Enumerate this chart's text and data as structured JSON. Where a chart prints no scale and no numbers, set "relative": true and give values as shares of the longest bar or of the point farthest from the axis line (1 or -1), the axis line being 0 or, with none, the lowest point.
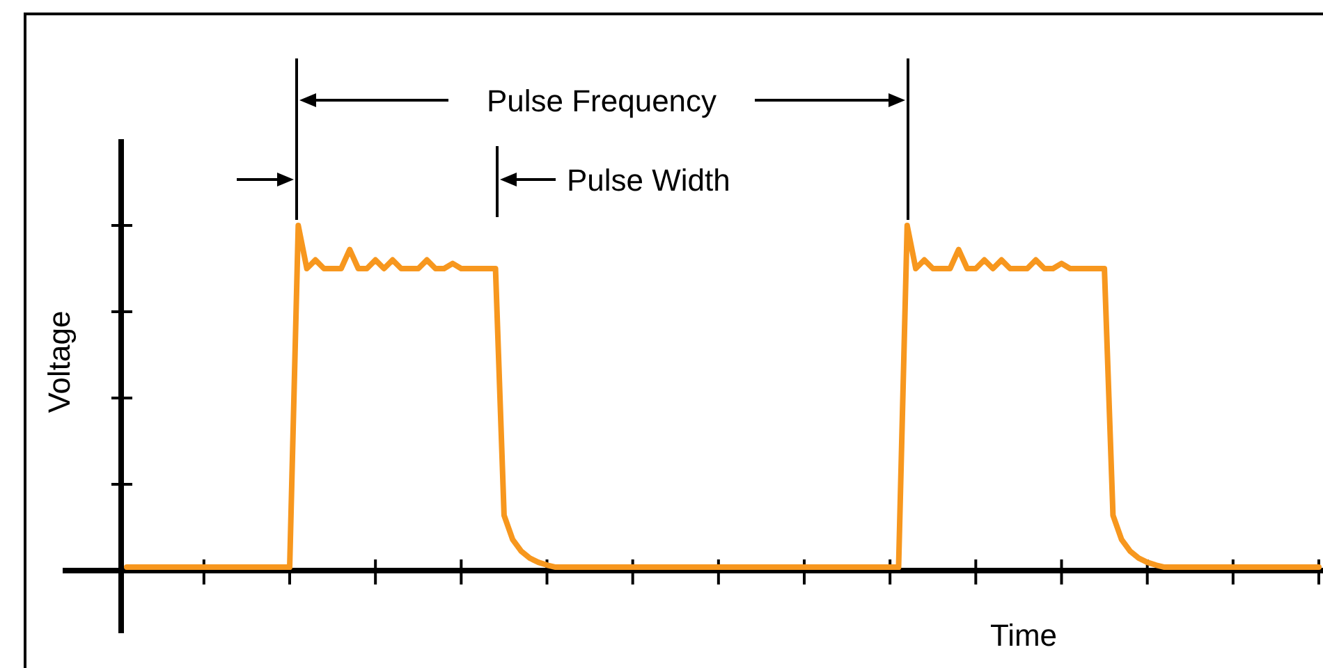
{
  "chart_data": {
    "type": "line",
    "relative": true,
    "xlabel": "Time",
    "ylabel": "Voltage",
    "annotations": [
      "Pulse Frequency",
      "Pulse Width"
    ],
    "categories": [
      null,
      null,
      null,
      null,
      null,
      null,
      null,
      null,
      null,
      null,
      null,
      null,
      null,
      null,
      null,
      null,
      null,
      null,
      null,
      null,
      null,
      null,
      null,
      null,
      null,
      null,
      null,
      null,
      null,
      null,
      null,
      null,
      null,
      null,
      null,
      null,
      null,
      null,
      null,
      null,
      null,
      null,
      null,
      null,
      null,
      null,
      null,
      null,
      null,
      null,
      null,
      null,
      null,
      null,
      null,
      null,
      null,
      null,
      null,
      null,
      null,
      null,
      null,
      null,
      null,
      null,
      null,
      null,
      null,
      null,
      null,
      null,
      null,
      null,
      null,
      null,
      null,
      null,
      null,
      null,
      null,
      null,
      null,
      null,
      null,
      null,
      null,
      null,
      null,
      null,
      null,
      null,
      null,
      null,
      null,
      null,
      null,
      null,
      null,
      null,
      null,
      null,
      null,
      null,
      null,
      null,
      null,
      null,
      null,
      null,
      null,
      null,
      null,
      null,
      null,
      null,
      null,
      null,
      null,
      null,
      null,
      null,
      null,
      null,
      null,
      null,
      null,
      null,
      null,
      null,
      null,
      null,
      null,
      null,
      null,
      null,
      null,
      null,
      null,
      null
    ],
    "series": [
      {
        "color": "#f7971e",
        "values": [
          0.01,
          0.01,
          0.01,
          0.01,
          0.01,
          0.01,
          0.01,
          0.01,
          0.01,
          0.01,
          0.01,
          0.01,
          0.01,
          0.01,
          0.01,
          0.01,
          0.01,
          0.01,
          0.01,
          0.01,
          1,
          0.875,
          0.9,
          0.875,
          0.875,
          0.875,
          0.93,
          0.875,
          0.875,
          0.9,
          0.875,
          0.9,
          0.875,
          0.875,
          0.875,
          0.9,
          0.875,
          0.875,
          0.89,
          0.875,
          0.875,
          0.875,
          0.875,
          0.875,
          0.16,
          0.09,
          0.056,
          0.036,
          0.024,
          0.016,
          0.01,
          0.01,
          0.01,
          0.01,
          0.01,
          0.01,
          0.01,
          0.01,
          0.01,
          0.01,
          0.01,
          0.01,
          0.01,
          0.01,
          0.01,
          0.01,
          0.01,
          0.01,
          0.01,
          0.01,
          0.01,
          0.01,
          0.01,
          0.01,
          0.01,
          0.01,
          0.01,
          0.01,
          0.01,
          0.01,
          0.01,
          0.01,
          0.01,
          0.01,
          0.01,
          0.01,
          0.01,
          0.01,
          0.01,
          0.01,
          0.01,
          1,
          0.875,
          0.9,
          0.875,
          0.875,
          0.875,
          0.93,
          0.875,
          0.875,
          0.9,
          0.875,
          0.9,
          0.875,
          0.875,
          0.875,
          0.9,
          0.875,
          0.875,
          0.89,
          0.875,
          0.875,
          0.875,
          0.875,
          0.875,
          0.16,
          0.09,
          0.056,
          0.036,
          0.024,
          0.016,
          0.01,
          0.01,
          0.01,
          0.01,
          0.01,
          0.01,
          0.01,
          0.01,
          0.01,
          0.01,
          0.01,
          0.01,
          0.01,
          0.01,
          0.01,
          0.01,
          0.01,
          0.01,
          0.01
        ]
      }
    ]
  }
}
